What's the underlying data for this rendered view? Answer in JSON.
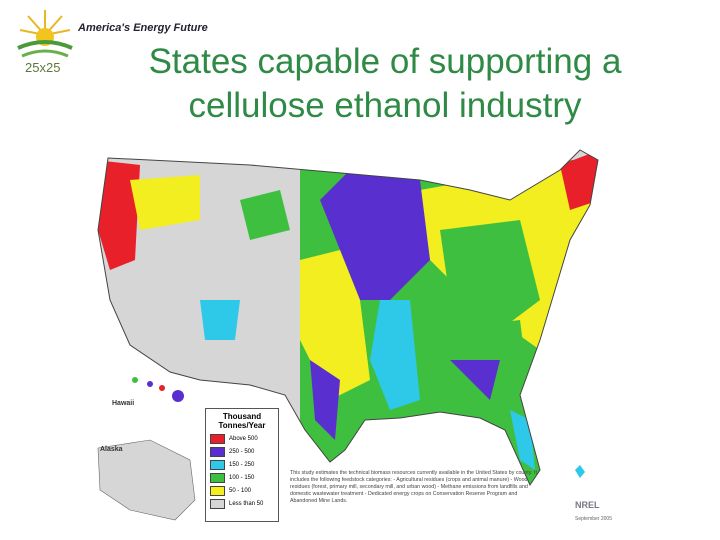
{
  "header": {
    "tagline": "America's Energy Future",
    "logo_text": "25x25",
    "title": "States capable of supporting a cellulose ethanol industry"
  },
  "map": {
    "labels": {
      "hawaii": "Hawaii",
      "alaska": "Alaska"
    },
    "legend": {
      "title": "Thousand Tonnes/Year",
      "items": [
        {
          "label": "Above 500",
          "color": "#e8202a"
        },
        {
          "label": "250 - 500",
          "color": "#5a2fd0"
        },
        {
          "label": "150 - 250",
          "color": "#2ec8e8"
        },
        {
          "label": "100 - 150",
          "color": "#3fbf3f"
        },
        {
          "label": "50 - 100",
          "color": "#f2ee20"
        },
        {
          "label": "Less than 50",
          "color": "#d6d6d6"
        }
      ]
    },
    "note": "This study estimates the technical biomass resources currently available in the United States by county. It includes the following feedstock categories: - Agricultural residues (crops and animal manure) - Wood residues (forest, primary mill, secondary mill, and urban wood) - Methane emissions from landfills and domestic wastewater treatment - Dedicated energy crops on Conservation Reserve Program and Abandoned Mine Lands.",
    "source": "NREL",
    "date": "September 2005"
  }
}
